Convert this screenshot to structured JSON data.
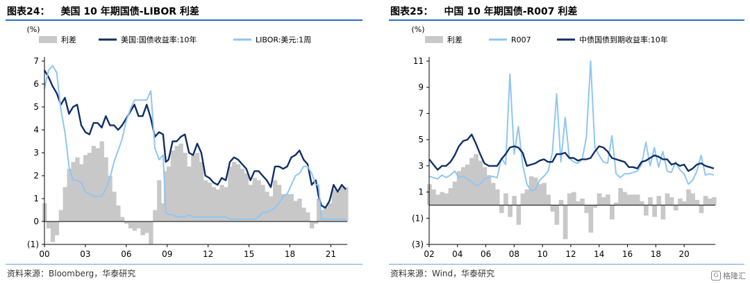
{
  "charts": [
    {
      "title_prefix": "图表24：",
      "title": "美国 10 年期国债-LIBOR 利差",
      "source": "资料来源：Bloomberg，华泰研究",
      "unit": "(%)"
    },
    {
      "title_prefix": "图表25：",
      "title": "中国 10 年期国债-R007 利差",
      "source": "资料来源：Wind，华泰研究",
      "unit": "(%)"
    }
  ],
  "watermark": {
    "text": "格隆汇"
  },
  "chart_data": [
    {
      "type": "line",
      "title": "美国 10 年期国债-LIBOR 利差",
      "ylabel": "(%)",
      "ylim": [
        -1,
        7
      ],
      "yticks": [
        -1,
        0,
        1,
        2,
        3,
        4,
        5,
        6,
        7
      ],
      "ytick_labels": [
        "(1)",
        "0",
        "1",
        "2",
        "3",
        "4",
        "5",
        "6",
        "7"
      ],
      "xlim": [
        2000,
        2022.2
      ],
      "xticks": [
        2000,
        2003,
        2006,
        2009,
        2012,
        2015,
        2018,
        2021
      ],
      "xtick_labels": [
        "00",
        "03",
        "06",
        "09",
        "12",
        "15",
        "18",
        "21"
      ],
      "legend_position": "top",
      "series": [
        {
          "name": "利差",
          "kind": "area",
          "color": "#c9c8c8",
          "x": [
            2000.0,
            2000.3,
            2000.6,
            2000.9,
            2001.2,
            2001.5,
            2001.8,
            2002.1,
            2002.4,
            2002.7,
            2003.0,
            2003.3,
            2003.6,
            2003.9,
            2004.2,
            2004.5,
            2004.8,
            2005.1,
            2005.4,
            2005.7,
            2006.0,
            2006.3,
            2006.6,
            2006.9,
            2007.2,
            2007.5,
            2007.8,
            2008.1,
            2008.4,
            2008.7,
            2008.9,
            2009.1,
            2009.4,
            2009.7,
            2010.0,
            2010.3,
            2010.6,
            2010.9,
            2011.2,
            2011.5,
            2011.8,
            2012.1,
            2012.4,
            2012.7,
            2013.0,
            2013.3,
            2013.6,
            2013.9,
            2014.2,
            2014.5,
            2014.8,
            2015.1,
            2015.4,
            2015.7,
            2016.0,
            2016.3,
            2016.6,
            2016.9,
            2017.2,
            2017.5,
            2017.8,
            2018.1,
            2018.4,
            2018.7,
            2019.0,
            2019.3,
            2019.6,
            2019.9,
            2020.1,
            2020.3,
            2020.6,
            2020.9,
            2021.2,
            2021.5,
            2021.8,
            2022.1
          ],
          "values": [
            0.8,
            -0.3,
            -0.9,
            -0.6,
            0.5,
            1.5,
            2.3,
            2.6,
            2.8,
            2.5,
            2.9,
            3.0,
            3.3,
            3.2,
            3.5,
            2.8,
            2.0,
            1.3,
            0.7,
            0.2,
            -0.1,
            -0.3,
            -0.4,
            -0.3,
            -0.6,
            -0.5,
            -1.0,
            0.5,
            1.8,
            0.8,
            2.2,
            2.4,
            3.1,
            3.3,
            3.4,
            3.0,
            2.4,
            2.9,
            3.0,
            2.6,
            1.8,
            1.7,
            1.5,
            1.4,
            1.6,
            1.5,
            2.4,
            2.6,
            2.5,
            2.3,
            2.1,
            1.6,
            1.9,
            1.8,
            1.6,
            1.3,
            1.1,
            1.8,
            1.6,
            1.2,
            1.2,
            1.2,
            0.9,
            1.0,
            0.6,
            0.4,
            -0.3,
            -0.1,
            1.0,
            0.5,
            0.6,
            0.8,
            1.4,
            1.3,
            1.5,
            1.5
          ]
        },
        {
          "name": "美国:国债收益率:10年",
          "kind": "line",
          "color": "#0f2f66",
          "x": [
            2000.0,
            2000.3,
            2000.6,
            2000.9,
            2001.2,
            2001.5,
            2001.8,
            2002.1,
            2002.4,
            2002.7,
            2003.0,
            2003.3,
            2003.6,
            2003.9,
            2004.2,
            2004.5,
            2004.8,
            2005.1,
            2005.4,
            2005.7,
            2006.0,
            2006.3,
            2006.6,
            2006.9,
            2007.2,
            2007.5,
            2007.8,
            2008.1,
            2008.4,
            2008.7,
            2008.9,
            2009.1,
            2009.4,
            2009.7,
            2010.0,
            2010.3,
            2010.6,
            2010.9,
            2011.2,
            2011.5,
            2011.8,
            2012.1,
            2012.4,
            2012.7,
            2013.0,
            2013.3,
            2013.6,
            2013.9,
            2014.2,
            2014.5,
            2014.8,
            2015.1,
            2015.4,
            2015.7,
            2016.0,
            2016.3,
            2016.6,
            2016.9,
            2017.2,
            2017.5,
            2017.8,
            2018.1,
            2018.4,
            2018.7,
            2019.0,
            2019.3,
            2019.6,
            2019.9,
            2020.1,
            2020.3,
            2020.6,
            2020.9,
            2021.2,
            2021.5,
            2021.8,
            2022.1
          ],
          "values": [
            6.6,
            6.3,
            5.9,
            5.6,
            5.1,
            5.4,
            4.7,
            5.0,
            5.1,
            4.2,
            3.9,
            3.8,
            4.3,
            4.3,
            4.1,
            4.6,
            4.2,
            4.2,
            4.0,
            4.2,
            4.5,
            4.8,
            5.1,
            4.6,
            4.6,
            5.1,
            4.5,
            3.7,
            3.9,
            3.8,
            2.6,
            2.7,
            3.5,
            3.5,
            3.7,
            3.8,
            3.0,
            2.9,
            3.4,
            3.0,
            2.0,
            1.9,
            1.7,
            1.6,
            1.9,
            1.8,
            2.6,
            2.8,
            2.7,
            2.5,
            2.3,
            1.8,
            2.2,
            2.2,
            2.0,
            1.8,
            1.5,
            2.4,
            2.4,
            2.3,
            2.4,
            2.8,
            2.9,
            3.1,
            2.7,
            2.5,
            1.6,
            1.8,
            1.1,
            0.7,
            0.6,
            0.9,
            1.6,
            1.3,
            1.6,
            1.4
          ]
        },
        {
          "name": "LIBOR:美元:1周",
          "kind": "line",
          "color": "#8ec6f3",
          "x": [
            2000.0,
            2000.3,
            2000.6,
            2000.9,
            2001.2,
            2001.5,
            2001.8,
            2002.1,
            2002.4,
            2002.7,
            2003.0,
            2003.3,
            2003.6,
            2003.9,
            2004.2,
            2004.5,
            2004.8,
            2005.1,
            2005.4,
            2005.7,
            2006.0,
            2006.3,
            2006.6,
            2006.9,
            2007.2,
            2007.5,
            2007.8,
            2008.1,
            2008.4,
            2008.7,
            2008.9,
            2009.1,
            2009.4,
            2009.7,
            2010.0,
            2010.3,
            2010.6,
            2010.9,
            2011.2,
            2011.5,
            2011.8,
            2012.1,
            2012.4,
            2012.7,
            2013.0,
            2013.3,
            2013.6,
            2013.9,
            2014.2,
            2014.5,
            2014.8,
            2015.1,
            2015.4,
            2015.7,
            2016.0,
            2016.3,
            2016.6,
            2016.9,
            2017.2,
            2017.5,
            2017.8,
            2018.1,
            2018.4,
            2018.7,
            2019.0,
            2019.3,
            2019.6,
            2019.9,
            2020.1,
            2020.3,
            2020.6,
            2020.9,
            2021.2,
            2021.5,
            2021.8,
            2022.1
          ],
          "values": [
            5.8,
            6.6,
            6.8,
            6.5,
            4.9,
            3.9,
            2.4,
            1.8,
            1.8,
            1.7,
            1.3,
            1.2,
            1.1,
            1.1,
            1.1,
            1.4,
            1.9,
            2.6,
            3.1,
            3.6,
            4.4,
            4.9,
            5.3,
            5.3,
            5.3,
            5.3,
            5.7,
            3.2,
            2.7,
            2.9,
            0.4,
            0.3,
            0.3,
            0.2,
            0.2,
            0.2,
            0.3,
            0.2,
            0.2,
            0.2,
            0.2,
            0.2,
            0.2,
            0.2,
            0.2,
            0.2,
            0.1,
            0.1,
            0.1,
            0.1,
            0.1,
            0.1,
            0.1,
            0.2,
            0.4,
            0.4,
            0.5,
            0.6,
            0.8,
            1.1,
            1.2,
            1.6,
            2.0,
            2.1,
            2.4,
            2.4,
            2.1,
            1.6,
            1.6,
            0.1,
            0.1,
            0.1,
            0.1,
            0.1,
            0.1,
            0.1
          ]
        }
      ]
    },
    {
      "type": "line",
      "title": "中国 10 年期国债-R007 利差",
      "ylabel": "(%)",
      "ylim": [
        -3,
        11
      ],
      "yticks": [
        -3,
        -1,
        1,
        3,
        5,
        7,
        9,
        11
      ],
      "ytick_labels": [
        "(3)",
        "(1)",
        "1",
        "3",
        "5",
        "7",
        "9",
        "11"
      ],
      "xlim": [
        2002,
        2022.2
      ],
      "xticks": [
        2002,
        2004,
        2006,
        2008,
        2010,
        2012,
        2014,
        2016,
        2018,
        2020
      ],
      "xtick_labels": [
        "02",
        "04",
        "06",
        "08",
        "10",
        "12",
        "14",
        "16",
        "18",
        "20"
      ],
      "legend_position": "top",
      "series": [
        {
          "name": "利差",
          "kind": "area",
          "color": "#c9c8c8",
          "x": [
            2002.0,
            2002.3,
            2002.6,
            2002.9,
            2003.2,
            2003.5,
            2003.8,
            2004.1,
            2004.4,
            2004.7,
            2005.0,
            2005.3,
            2005.6,
            2005.9,
            2006.2,
            2006.5,
            2006.8,
            2007.1,
            2007.4,
            2007.7,
            2008.0,
            2008.3,
            2008.6,
            2008.9,
            2009.2,
            2009.5,
            2009.8,
            2010.1,
            2010.4,
            2010.7,
            2011.0,
            2011.3,
            2011.6,
            2011.9,
            2012.2,
            2012.5,
            2012.8,
            2013.1,
            2013.4,
            2013.7,
            2014.0,
            2014.3,
            2014.6,
            2014.9,
            2015.2,
            2015.5,
            2015.8,
            2016.1,
            2016.4,
            2016.7,
            2017.0,
            2017.3,
            2017.6,
            2017.9,
            2018.2,
            2018.5,
            2018.8,
            2019.1,
            2019.4,
            2019.7,
            2020.0,
            2020.3,
            2020.6,
            2020.9,
            2021.2,
            2021.5,
            2021.8,
            2022.1
          ],
          "values": [
            1.6,
            1.2,
            0.8,
            1.0,
            0.9,
            1.3,
            1.8,
            2.6,
            2.9,
            3.1,
            3.6,
            3.9,
            3.4,
            2.9,
            2.3,
            1.7,
            1.2,
            -0.6,
            0.9,
            -0.9,
            0.7,
            -1.5,
            0.9,
            1.2,
            2.2,
            2.1,
            1.6,
            1.7,
            0.8,
            -0.5,
            -1.5,
            0.4,
            -2.6,
            0.9,
            1.0,
            0.3,
            0.5,
            -0.6,
            -2.1,
            -0.2,
            0.9,
            0.6,
            0.8,
            -1.1,
            0.2,
            1.3,
            1.0,
            0.8,
            0.8,
            0.8,
            0.3,
            -0.8,
            0.6,
            -0.9,
            0.7,
            -1.1,
            0.9,
            0.6,
            -0.4,
            0.5,
            0.3,
            1.2,
            0.9,
            0.4,
            -0.6,
            0.7,
            0.5,
            0.6
          ]
        },
        {
          "name": "R007",
          "kind": "line",
          "color": "#8ec6f3",
          "x": [
            2002.0,
            2002.3,
            2002.6,
            2002.9,
            2003.2,
            2003.5,
            2003.8,
            2004.1,
            2004.4,
            2004.7,
            2005.0,
            2005.3,
            2005.6,
            2005.9,
            2006.2,
            2006.5,
            2006.8,
            2007.1,
            2007.4,
            2007.7,
            2008.0,
            2008.3,
            2008.6,
            2008.9,
            2009.2,
            2009.5,
            2009.8,
            2010.1,
            2010.4,
            2010.7,
            2011.0,
            2011.3,
            2011.6,
            2011.9,
            2012.2,
            2012.5,
            2012.8,
            2013.1,
            2013.4,
            2013.7,
            2014.0,
            2014.3,
            2014.6,
            2014.9,
            2015.2,
            2015.5,
            2015.8,
            2016.1,
            2016.4,
            2016.7,
            2017.0,
            2017.3,
            2017.6,
            2017.9,
            2018.2,
            2018.5,
            2018.8,
            2019.1,
            2019.4,
            2019.7,
            2020.0,
            2020.3,
            2020.6,
            2020.9,
            2021.2,
            2021.5,
            2021.8,
            2022.1
          ],
          "values": [
            2.2,
            2.1,
            2.0,
            2.3,
            2.1,
            2.3,
            2.6,
            2.1,
            2.2,
            2.0,
            1.8,
            1.5,
            1.6,
            2.0,
            2.1,
            2.2,
            2.1,
            3.6,
            3.1,
            10.0,
            3.9,
            6.0,
            3.1,
            1.6,
            1.1,
            1.2,
            1.9,
            2.2,
            2.6,
            4.0,
            8.5,
            3.3,
            6.7,
            3.6,
            3.3,
            3.2,
            3.5,
            5.2,
            11.0,
            4.4,
            3.8,
            3.3,
            3.2,
            5.3,
            2.4,
            2.1,
            2.4,
            2.4,
            2.5,
            2.6,
            3.1,
            4.8,
            3.0,
            4.4,
            2.9,
            4.1,
            2.6,
            2.5,
            3.3,
            2.7,
            2.4,
            1.6,
            1.9,
            2.6,
            3.8,
            2.3,
            2.4,
            2.3
          ]
        },
        {
          "name": "中债国债到期收益率:10年",
          "kind": "line",
          "color": "#0f2f66",
          "x": [
            2002.0,
            2002.3,
            2002.6,
            2002.9,
            2003.2,
            2003.5,
            2003.8,
            2004.1,
            2004.4,
            2004.7,
            2005.0,
            2005.3,
            2005.6,
            2005.9,
            2006.2,
            2006.5,
            2006.8,
            2007.1,
            2007.4,
            2007.7,
            2008.0,
            2008.3,
            2008.6,
            2008.9,
            2009.2,
            2009.5,
            2009.8,
            2010.1,
            2010.4,
            2010.7,
            2011.0,
            2011.3,
            2011.6,
            2011.9,
            2012.2,
            2012.5,
            2012.8,
            2013.1,
            2013.4,
            2013.7,
            2014.0,
            2014.3,
            2014.6,
            2014.9,
            2015.2,
            2015.5,
            2015.8,
            2016.1,
            2016.4,
            2016.7,
            2017.0,
            2017.3,
            2017.6,
            2017.9,
            2018.2,
            2018.5,
            2018.8,
            2019.1,
            2019.4,
            2019.7,
            2020.0,
            2020.3,
            2020.6,
            2020.9,
            2021.2,
            2021.5,
            2021.8,
            2022.1
          ],
          "values": [
            3.5,
            3.1,
            2.7,
            3.0,
            3.0,
            3.3,
            3.8,
            4.5,
            4.9,
            5.0,
            5.4,
            4.7,
            3.9,
            3.2,
            3.0,
            3.0,
            3.0,
            3.5,
            3.9,
            4.4,
            4.5,
            4.4,
            4.0,
            3.0,
            3.1,
            3.2,
            3.4,
            3.5,
            3.3,
            3.3,
            3.9,
            3.9,
            4.0,
            3.6,
            3.6,
            3.4,
            3.5,
            3.5,
            3.6,
            4.1,
            4.5,
            4.4,
            4.1,
            3.6,
            3.5,
            3.4,
            3.3,
            2.9,
            2.9,
            2.8,
            3.3,
            3.4,
            3.6,
            3.8,
            3.7,
            3.5,
            3.5,
            3.1,
            3.2,
            3.0,
            3.1,
            2.6,
            2.8,
            3.1,
            3.2,
            3.0,
            2.9,
            2.8
          ]
        }
      ]
    }
  ]
}
